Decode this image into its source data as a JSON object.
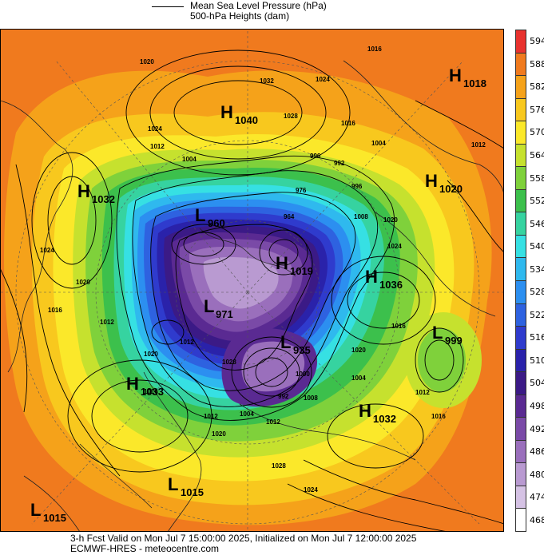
{
  "legend": {
    "line1": "Mean Sea Level Pressure (hPa)",
    "line2": "500-hPa Heights (dam)"
  },
  "colorbar": {
    "labels": [
      "594",
      "588",
      "582",
      "576",
      "570",
      "564",
      "558",
      "552",
      "546",
      "540",
      "534",
      "528",
      "522",
      "516",
      "510",
      "504",
      "498",
      "492",
      "486",
      "480",
      "474",
      "468"
    ],
    "colors": [
      "#e8322e",
      "#f07a1e",
      "#f5a21a",
      "#f8c81e",
      "#fbe82a",
      "#c6e12e",
      "#7fd13b",
      "#3cc04c",
      "#36d3a0",
      "#36e0e3",
      "#2fb9ee",
      "#2c8ff0",
      "#2e62e0",
      "#2f3bcd",
      "#2a22aa",
      "#3b1a86",
      "#5a2a92",
      "#7a4aa7",
      "#9a6fbc",
      "#b99ad1",
      "#d5c2e4",
      "#ffffff"
    ]
  },
  "pressure_centers": [
    {
      "type": "H",
      "value": "1018"
    },
    {
      "type": "H",
      "value": "1040"
    },
    {
      "type": "H",
      "value": "1032"
    },
    {
      "type": "H",
      "value": "1020"
    },
    {
      "type": "L",
      "value": "960"
    },
    {
      "type": "H",
      "value": "1019"
    },
    {
      "type": "H",
      "value": "1036"
    },
    {
      "type": "L",
      "value": "971"
    },
    {
      "type": "L",
      "value": "999"
    },
    {
      "type": "L",
      "value": "935"
    },
    {
      "type": "H",
      "value": "1033"
    },
    {
      "type": "H",
      "value": "1032"
    },
    {
      "type": "L",
      "value": "1015"
    },
    {
      "type": "L",
      "value": "1015"
    }
  ],
  "isobar_labels": [
    "1020",
    "1032",
    "1024",
    "1028",
    "1016",
    "1012",
    "1024",
    "1004",
    "996",
    "992",
    "996",
    "976",
    "964",
    "1012",
    "1008",
    "1024",
    "1020",
    "1016",
    "1004",
    "1012",
    "1020",
    "1024",
    "1016",
    "1012",
    "1020",
    "1028",
    "1004",
    "1012",
    "1008",
    "1004",
    "992",
    "1000",
    "1012",
    "1016",
    "1020",
    "1024",
    "1028",
    "1016",
    "1012",
    "1020",
    "1016"
  ],
  "footer": {
    "line1": "3-h Fcst Valid on Mon Jul  7 15:00:00 2025, Initialized on Mon Jul  7 12:00:00 2025",
    "line2": "ECMWF-HRES - meteocentre.com"
  }
}
